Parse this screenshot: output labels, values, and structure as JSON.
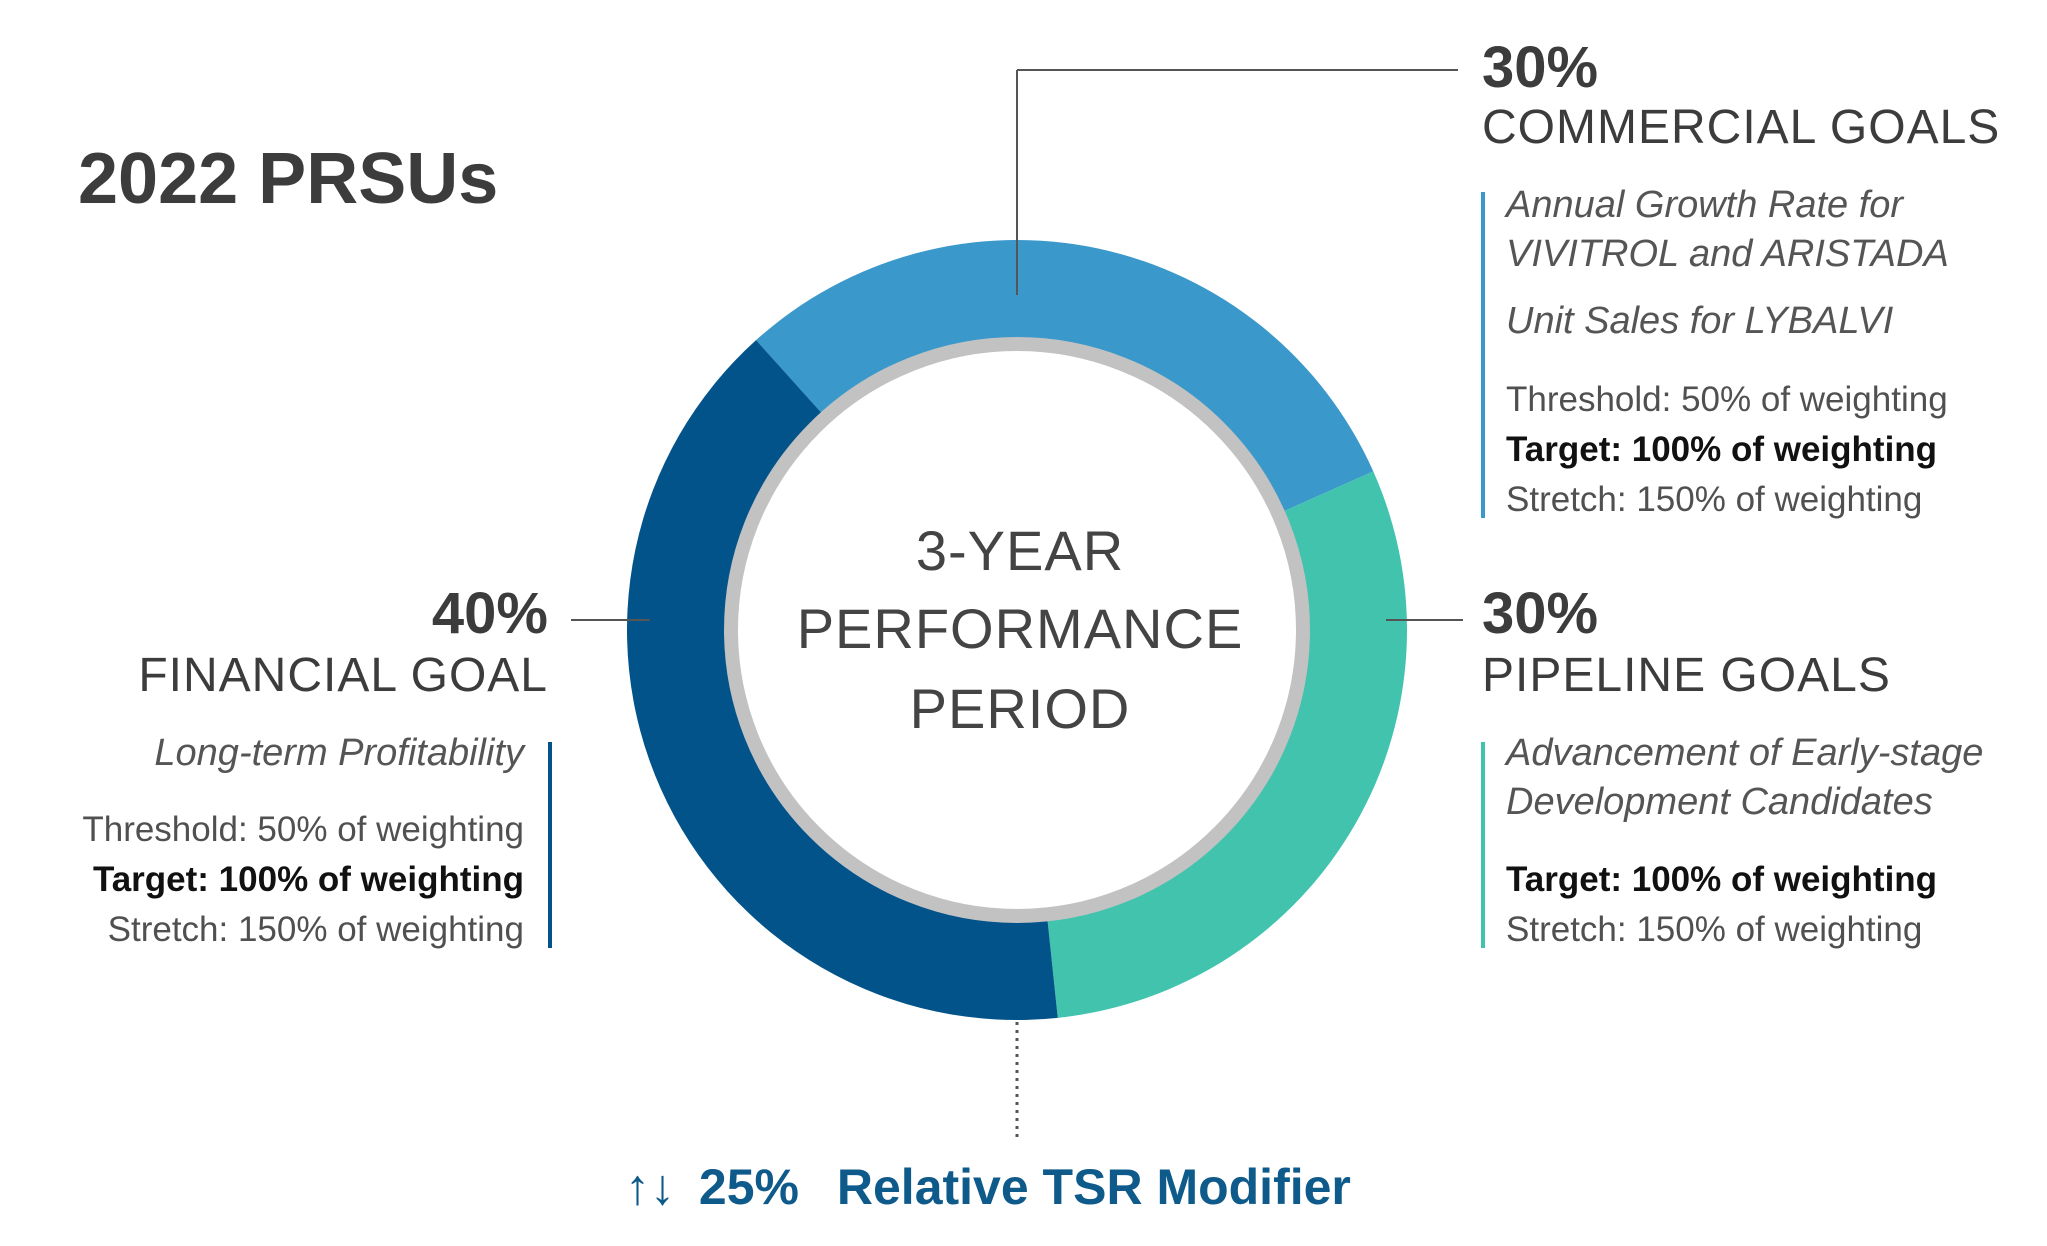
{
  "title": "2022 PRSUs",
  "center": {
    "line1": "3-YEAR",
    "line2": "PERFORMANCE",
    "line3": "PERIOD"
  },
  "colors": {
    "commercial": "#3a98cb",
    "pipeline": "#42c3ae",
    "financial": "#02538a",
    "ring": "#c2c2c2",
    "commercial_bar": "#3a98cb",
    "pipeline_bar": "#42c3ae",
    "financial_bar": "#02538a",
    "modifier": "#0e5a8a"
  },
  "segments": [
    {
      "name": "commercial",
      "percent": 30
    },
    {
      "name": "pipeline",
      "percent": 30
    },
    {
      "name": "financial",
      "percent": 40
    }
  ],
  "commercial": {
    "percent": "30%",
    "label": "COMMERCIAL GOALS",
    "desc1": "Annual Growth Rate for",
    "desc2": "VIVITROL and ARISTADA",
    "desc3": "Unit Sales for LYBALVI",
    "threshold": "Threshold: 50% of weighting",
    "target": "Target: 100% of weighting",
    "stretch": "Stretch: 150% of weighting"
  },
  "pipeline": {
    "percent": "30%",
    "label": "PIPELINE GOALS",
    "desc1": "Advancement of Early-stage",
    "desc2": "Development Candidates",
    "target": "Target: 100% of weighting",
    "stretch": "Stretch: 150% of weighting"
  },
  "financial": {
    "percent": "40%",
    "label": "FINANCIAL GOAL",
    "desc1": "Long-term Profitability",
    "threshold": "Threshold: 50% of weighting",
    "target": "Target: 100% of weighting",
    "stretch": "Stretch: 150% of weighting"
  },
  "modifier": {
    "arrows": "↑↓",
    "percent": "25%",
    "label": "Relative TSR Modifier"
  }
}
